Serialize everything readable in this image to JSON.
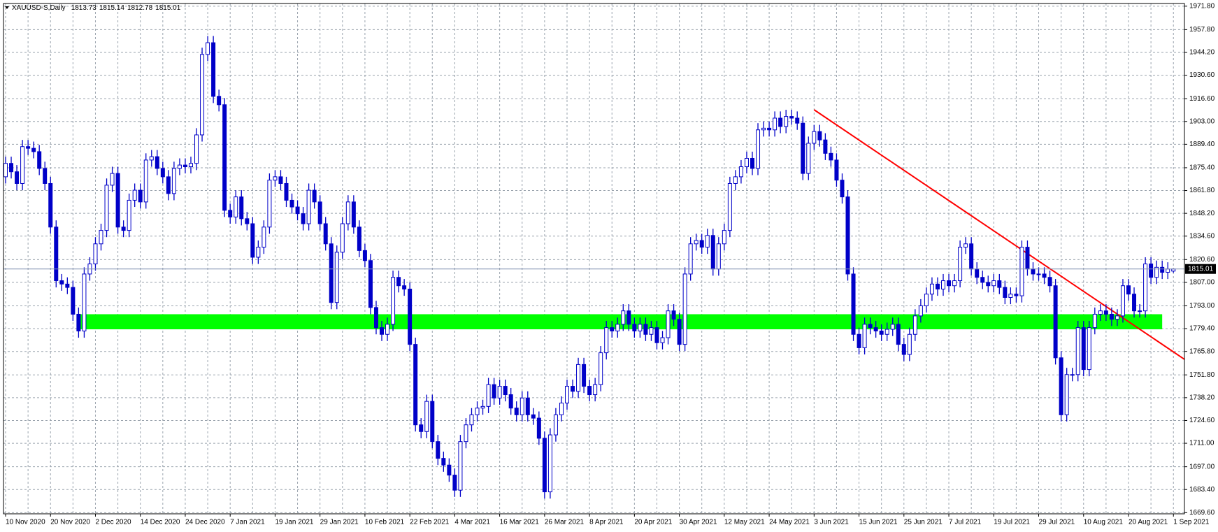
{
  "chart_data": {
    "type": "candlestick",
    "title": "XAUUSD-S,Daily",
    "color": "#0000c8",
    "categories": [
      "10 Nov 2020",
      null,
      null,
      null,
      null,
      null,
      null,
      null,
      "20 Nov 2020",
      null,
      null,
      null,
      null,
      null,
      null,
      null,
      "2 Dec 2020",
      null,
      null,
      null,
      null,
      null,
      null,
      null,
      "14 Dec 2020",
      null,
      null,
      null,
      null,
      null,
      null,
      null,
      "24 Dec 2020",
      null,
      null,
      null,
      null,
      null,
      null,
      null,
      "7 Jan 2021",
      null,
      null,
      null,
      null,
      null,
      null,
      null,
      "19 Jan 2021",
      null,
      null,
      null,
      null,
      null,
      null,
      null,
      "29 Jan 2021",
      null,
      null,
      null,
      null,
      null,
      null,
      null,
      "10 Feb 2021",
      null,
      null,
      null,
      null,
      null,
      null,
      null,
      "22 Feb 2021",
      null,
      null,
      null,
      null,
      null,
      null,
      null,
      "4 Mar 2021",
      null,
      null,
      null,
      null,
      null,
      null,
      null,
      "16 Mar 2021",
      null,
      null,
      null,
      null,
      null,
      null,
      null,
      "26 Mar 2021",
      null,
      null,
      null,
      null,
      null,
      null,
      null,
      "8 Apr 2021",
      null,
      null,
      null,
      null,
      null,
      null,
      null,
      "20 Apr 2021",
      null,
      null,
      null,
      null,
      null,
      null,
      null,
      "30 Apr 2021",
      null,
      null,
      null,
      null,
      null,
      null,
      null,
      "12 May 2021",
      null,
      null,
      null,
      null,
      null,
      null,
      null,
      "24 May 2021",
      null,
      null,
      null,
      null,
      null,
      null,
      null,
      "3 Jun 2021",
      null,
      null,
      null,
      null,
      null,
      null,
      null,
      "15 Jun 2021",
      null,
      null,
      null,
      null,
      null,
      null,
      null,
      "25 Jun 2021",
      null,
      null,
      null,
      null,
      null,
      null,
      null,
      "7 Jul 2021",
      null,
      null,
      null,
      null,
      null,
      null,
      null,
      "19 Jul 2021",
      null,
      null,
      null,
      null,
      null,
      null,
      null,
      "29 Jul 2021",
      null,
      null,
      null,
      null,
      null,
      null,
      null,
      "10 Aug 2021",
      null,
      null,
      null,
      null,
      null,
      null,
      null,
      "20 Aug 2021",
      null,
      null,
      null,
      null,
      null,
      null,
      null,
      "1 Sep 2021"
    ],
    "open": [
      1870,
      1878,
      1873,
      1866,
      1888,
      1887,
      1885,
      1875,
      1866,
      1840,
      1808,
      1806,
      1804,
      1788,
      1778,
      1812,
      1818,
      1830,
      1838,
      1865,
      1872,
      1840,
      1838,
      1856,
      1862,
      1855,
      1880,
      1882,
      1875,
      1870,
      1860,
      1875,
      1877,
      1876,
      1878,
      1895,
      1943,
      1950,
      1918,
      1913,
      1850,
      1846,
      1858,
      1845,
      1842,
      1822,
      1828,
      1840,
      1868,
      1870,
      1866,
      1856,
      1852,
      1848,
      1842,
      1862,
      1855,
      1842,
      1830,
      1795,
      1825,
      1842,
      1855,
      1840,
      1826,
      1820,
      1792,
      1780,
      1776,
      1782,
      1810,
      1805,
      1803,
      1770,
      1722,
      1718,
      1736,
      1712,
      1702,
      1698,
      1692,
      1683,
      1712,
      1722,
      1728,
      1732,
      1733,
      1746,
      1738,
      1745,
      1740,
      1732,
      1728,
      1738,
      1728,
      1726,
      1714,
      1682,
      1716,
      1728,
      1735,
      1745,
      1742,
      1758,
      1745,
      1740,
      1746,
      1765,
      1780,
      1778,
      1782,
      1790,
      1782,
      1778,
      1782,
      1776,
      1780,
      1771,
      1774,
      1790,
      1785,
      1770,
      1812,
      1830,
      1832,
      1828,
      1835,
      1815,
      1830,
      1838,
      1866,
      1870,
      1876,
      1881,
      1875,
      1898,
      1899,
      1898,
      1905,
      1900,
      1906,
      1905,
      1902,
      1872,
      1890,
      1897,
      1892,
      1884,
      1880,
      1868,
      1858,
      1812,
      1776,
      1768,
      1782,
      1780,
      1778,
      1776,
      1779,
      1782,
      1770,
      1764,
      1776,
      1787,
      1793,
      1800,
      1806,
      1803,
      1808,
      1805,
      1808,
      1828,
      1830,
      1815,
      1810,
      1807,
      1805,
      1808,
      1804,
      1798,
      1800,
      1799,
      1828,
      1815,
      1812,
      1812,
      1810,
      1805,
      1762,
      1728,
      1752,
      1752,
      1780,
      1755,
      1780,
      1788,
      1790,
      1788,
      1785,
      1787,
      1805,
      1800,
      1790,
      1790,
      1818,
      1810,
      1816,
      1813,
      1813.73
    ],
    "high": [
      1882,
      1882,
      1877,
      1892,
      1892,
      1891,
      1889,
      1879,
      1870,
      1844,
      1812,
      1810,
      1808,
      1792,
      1816,
      1822,
      1834,
      1842,
      1869,
      1876,
      1876,
      1844,
      1860,
      1866,
      1866,
      1884,
      1886,
      1886,
      1879,
      1874,
      1879,
      1881,
      1881,
      1882,
      1899,
      1947,
      1954,
      1954,
      1922,
      1917,
      1854,
      1862,
      1862,
      1849,
      1846,
      1832,
      1844,
      1872,
      1874,
      1874,
      1870,
      1860,
      1856,
      1852,
      1866,
      1866,
      1859,
      1846,
      1834,
      1829,
      1846,
      1859,
      1859,
      1844,
      1830,
      1824,
      1796,
      1784,
      1786,
      1814,
      1814,
      1809,
      1807,
      1774,
      1726,
      1740,
      1740,
      1716,
      1706,
      1702,
      1696,
      1716,
      1726,
      1732,
      1736,
      1737,
      1750,
      1750,
      1749,
      1749,
      1744,
      1736,
      1742,
      1742,
      1732,
      1730,
      1718,
      1720,
      1732,
      1739,
      1749,
      1749,
      1762,
      1762,
      1749,
      1750,
      1769,
      1784,
      1784,
      1786,
      1794,
      1794,
      1786,
      1786,
      1786,
      1784,
      1784,
      1778,
      1794,
      1794,
      1789,
      1816,
      1834,
      1836,
      1836,
      1839,
      1839,
      1834,
      1842,
      1870,
      1874,
      1880,
      1885,
      1885,
      1902,
      1903,
      1903,
      1909,
      1909,
      1910,
      1910,
      1909,
      1906,
      1894,
      1901,
      1901,
      1896,
      1888,
      1884,
      1872,
      1862,
      1816,
      1780,
      1786,
      1786,
      1784,
      1782,
      1783,
      1786,
      1786,
      1774,
      1780,
      1791,
      1797,
      1804,
      1810,
      1810,
      1812,
      1812,
      1812,
      1832,
      1834,
      1834,
      1819,
      1814,
      1811,
      1812,
      1812,
      1808,
      1804,
      1804,
      1832,
      1832,
      1819,
      1816,
      1816,
      1814,
      1809,
      1766,
      1756,
      1756,
      1784,
      1784,
      1784,
      1792,
      1794,
      1794,
      1792,
      1791,
      1809,
      1809,
      1804,
      1794,
      1822,
      1822,
      1820,
      1820,
      1819,
      1815.14
    ],
    "low": [
      1866,
      1869,
      1862,
      1862,
      1883,
      1881,
      1871,
      1862,
      1836,
      1804,
      1802,
      1800,
      1784,
      1774,
      1774,
      1808,
      1814,
      1826,
      1834,
      1861,
      1836,
      1834,
      1834,
      1852,
      1851,
      1851,
      1876,
      1871,
      1866,
      1856,
      1856,
      1871,
      1872,
      1872,
      1874,
      1891,
      1939,
      1914,
      1909,
      1846,
      1842,
      1842,
      1841,
      1838,
      1818,
      1818,
      1824,
      1836,
      1864,
      1862,
      1852,
      1848,
      1844,
      1838,
      1838,
      1851,
      1838,
      1826,
      1791,
      1791,
      1821,
      1838,
      1836,
      1822,
      1816,
      1788,
      1776,
      1772,
      1772,
      1778,
      1801,
      1799,
      1766,
      1718,
      1714,
      1714,
      1708,
      1698,
      1694,
      1688,
      1679,
      1679,
      1708,
      1718,
      1724,
      1728,
      1729,
      1734,
      1734,
      1736,
      1728,
      1724,
      1724,
      1724,
      1722,
      1710,
      1678,
      1678,
      1712,
      1724,
      1731,
      1738,
      1738,
      1741,
      1736,
      1736,
      1742,
      1761,
      1774,
      1774,
      1778,
      1778,
      1774,
      1774,
      1772,
      1772,
      1767,
      1767,
      1770,
      1781,
      1766,
      1766,
      1808,
      1826,
      1824,
      1824,
      1811,
      1811,
      1826,
      1834,
      1862,
      1866,
      1872,
      1871,
      1871,
      1894,
      1894,
      1894,
      1896,
      1896,
      1901,
      1898,
      1868,
      1868,
      1886,
      1888,
      1880,
      1876,
      1864,
      1854,
      1808,
      1772,
      1764,
      1764,
      1776,
      1774,
      1772,
      1772,
      1775,
      1766,
      1760,
      1760,
      1772,
      1783,
      1789,
      1796,
      1799,
      1799,
      1801,
      1801,
      1804,
      1824,
      1811,
      1806,
      1803,
      1801,
      1801,
      1800,
      1794,
      1794,
      1795,
      1795,
      1811,
      1808,
      1808,
      1806,
      1801,
      1758,
      1724,
      1724,
      1748,
      1748,
      1751,
      1751,
      1776,
      1784,
      1784,
      1781,
      1781,
      1783,
      1796,
      1786,
      1786,
      1786,
      1806,
      1806,
      1809,
      1809,
      1812.78
    ],
    "close": [
      1878,
      1873,
      1866,
      1888,
      1887,
      1885,
      1875,
      1866,
      1840,
      1808,
      1806,
      1804,
      1788,
      1778,
      1812,
      1818,
      1830,
      1838,
      1865,
      1872,
      1840,
      1838,
      1856,
      1862,
      1855,
      1880,
      1882,
      1875,
      1870,
      1860,
      1875,
      1877,
      1876,
      1878,
      1895,
      1943,
      1950,
      1918,
      1913,
      1850,
      1846,
      1858,
      1845,
      1842,
      1822,
      1828,
      1840,
      1868,
      1870,
      1866,
      1856,
      1852,
      1848,
      1842,
      1862,
      1855,
      1842,
      1830,
      1795,
      1825,
      1842,
      1855,
      1840,
      1826,
      1820,
      1792,
      1780,
      1776,
      1782,
      1810,
      1805,
      1803,
      1770,
      1722,
      1718,
      1736,
      1712,
      1702,
      1698,
      1692,
      1683,
      1712,
      1722,
      1728,
      1732,
      1733,
      1746,
      1738,
      1745,
      1740,
      1732,
      1728,
      1738,
      1728,
      1726,
      1714,
      1682,
      1716,
      1728,
      1735,
      1745,
      1742,
      1758,
      1745,
      1740,
      1746,
      1765,
      1780,
      1778,
      1782,
      1790,
      1782,
      1778,
      1782,
      1776,
      1780,
      1771,
      1774,
      1790,
      1785,
      1770,
      1812,
      1830,
      1832,
      1828,
      1835,
      1815,
      1830,
      1838,
      1866,
      1870,
      1876,
      1881,
      1875,
      1898,
      1899,
      1898,
      1905,
      1900,
      1906,
      1905,
      1902,
      1872,
      1890,
      1897,
      1892,
      1884,
      1880,
      1868,
      1858,
      1812,
      1776,
      1768,
      1782,
      1780,
      1778,
      1776,
      1779,
      1782,
      1770,
      1764,
      1776,
      1787,
      1793,
      1800,
      1806,
      1803,
      1808,
      1805,
      1808,
      1828,
      1830,
      1815,
      1810,
      1807,
      1805,
      1808,
      1804,
      1798,
      1800,
      1799,
      1828,
      1815,
      1812,
      1812,
      1810,
      1805,
      1762,
      1728,
      1752,
      1752,
      1780,
      1755,
      1780,
      1788,
      1790,
      1788,
      1785,
      1787,
      1805,
      1800,
      1790,
      1790,
      1818,
      1810,
      1816,
      1813,
      1815,
      1815.01
    ],
    "ylim": [
      1668.9,
      1973.4
    ],
    "yticks": [
      {
        "value": 1971.8,
        "label": "1971.80"
      },
      {
        "value": 1957.8,
        "label": "1957.80"
      },
      {
        "value": 1944.2,
        "label": "1944.20"
      },
      {
        "value": 1930.6,
        "label": "1930.60"
      },
      {
        "value": 1916.6,
        "label": "1916.60"
      },
      {
        "value": 1903.0,
        "label": "1903.00"
      },
      {
        "value": 1889.4,
        "label": "1889.40"
      },
      {
        "value": 1875.4,
        "label": "1875.40"
      },
      {
        "value": 1861.8,
        "label": "1861.80"
      },
      {
        "value": 1848.2,
        "label": "1848.20"
      },
      {
        "value": 1834.6,
        "label": "1834.60"
      },
      {
        "value": 1820.6,
        "label": "1820.60"
      },
      {
        "value": 1807.0,
        "label": "1807.00"
      },
      {
        "value": 1793.0,
        "label": "1793.00"
      },
      {
        "value": 1779.4,
        "label": "1779.40"
      },
      {
        "value": 1765.8,
        "label": "1765.80"
      },
      {
        "value": 1751.8,
        "label": "1751.80"
      },
      {
        "value": 1738.2,
        "label": "1738.20"
      },
      {
        "value": 1724.6,
        "label": "1724.60"
      },
      {
        "value": 1711.0,
        "label": "1711.00"
      },
      {
        "value": 1697.0,
        "label": "1697.00"
      },
      {
        "value": 1683.4,
        "label": "1683.40"
      },
      {
        "value": 1669.6,
        "label": "1669.60"
      }
    ],
    "grid": true,
    "zone": {
      "x": [
        13,
        206
      ],
      "y": [
        1779,
        1788
      ],
      "color": "#00ff00"
    },
    "trendline": {
      "x": [
        144,
        210
      ],
      "y": [
        1910,
        1761
      ],
      "color": "#ff0000"
    }
  }
}
